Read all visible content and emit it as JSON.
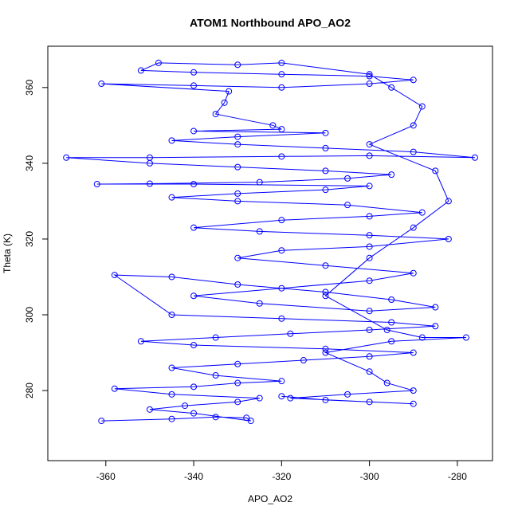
{
  "chart_data": {
    "type": "line",
    "title": "ATOM1 Northbound APO_AO2",
    "xlabel": "APO_AO2",
    "ylabel": "Theta (K)",
    "color": "#0000ff",
    "markers": true,
    "x": [
      -361,
      -345,
      -335,
      -328,
      -327,
      -340,
      -350,
      -342,
      -330,
      -325,
      -345,
      -358,
      -340,
      -330,
      -320,
      -335,
      -345,
      -330,
      -315,
      -300,
      -290,
      -310,
      -340,
      -352,
      -335,
      -318,
      -300,
      -285,
      -295,
      -320,
      -345,
      -358,
      -345,
      -330,
      -310,
      -295,
      -285,
      -300,
      -325,
      -340,
      -320,
      -300,
      -290,
      -310,
      -330,
      -320,
      -300,
      -282,
      -300,
      -325,
      -340,
      -320,
      -300,
      -288,
      -305,
      -330,
      -345,
      -330,
      -310,
      -300,
      -340,
      -362,
      -350,
      -325,
      -305,
      -295,
      -310,
      -330,
      -350,
      -369,
      -350,
      -320,
      -300,
      -276,
      -290,
      -310,
      -330,
      -345,
      -330,
      -310,
      -340,
      -320,
      -322,
      -335,
      -333,
      -332,
      -361,
      -340,
      -320,
      -300,
      -290,
      -300,
      -320,
      -340,
      -352,
      -348,
      -330,
      -320,
      -300,
      -295,
      -288,
      -290,
      -300,
      -285,
      -282,
      -290,
      -300,
      -310,
      -296,
      -288,
      -278,
      -295,
      -310,
      -300,
      -296,
      -290,
      -305,
      -318,
      -300,
      -290,
      -310,
      -320
    ],
    "y": [
      272,
      272.5,
      273,
      272.8,
      272,
      274,
      275,
      276,
      277,
      278,
      279,
      280.5,
      281,
      282,
      282.5,
      284,
      286,
      287,
      288,
      289,
      290,
      291,
      292,
      293,
      294,
      295,
      296,
      297,
      298,
      299,
      300,
      310.5,
      310,
      308,
      306,
      304,
      302,
      301,
      303,
      305,
      307,
      309,
      311,
      313,
      315,
      317,
      318,
      320,
      321,
      322,
      323,
      325,
      326,
      327,
      329,
      330,
      331,
      332,
      333,
      334,
      334.5,
      334.5,
      334.6,
      335,
      336,
      337,
      338,
      339,
      340,
      341.5,
      341.5,
      341.8,
      342,
      341.5,
      343,
      344,
      345,
      346,
      347,
      348,
      348.5,
      349,
      350,
      353,
      356,
      359,
      361,
      360.5,
      360,
      361,
      362,
      363,
      363.5,
      364,
      364.5,
      366.5,
      366,
      366.5,
      363.5,
      360,
      355,
      350,
      345,
      338,
      330,
      323,
      315,
      305,
      296,
      294,
      294,
      293,
      290,
      285,
      282,
      280,
      279,
      278,
      277,
      276.5,
      277.5,
      278.5
    ],
    "xlim": [
      -373.2,
      -272
    ],
    "ylim": [
      261.5,
      370.9
    ],
    "xticks": [
      -360,
      -340,
      -320,
      -300,
      -280
    ],
    "yticks": [
      280,
      300,
      320,
      340,
      360
    ]
  }
}
